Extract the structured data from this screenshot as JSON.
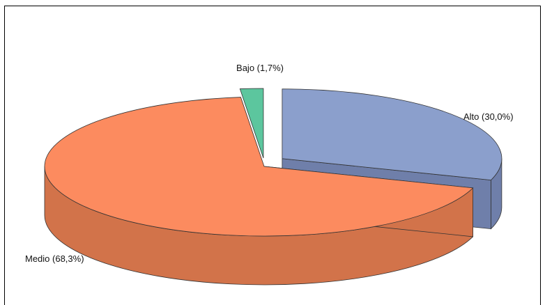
{
  "chart_data": {
    "type": "pie",
    "style": "3d-exploded",
    "slices": [
      {
        "label": "Alto (30,0%)",
        "category": "Alto",
        "value": 30.0,
        "color": "#8b9fcc",
        "side_color": "#6f7faa"
      },
      {
        "label": "Medio (68,3%)",
        "category": "Medio",
        "value": 68.3,
        "color": "#fc8b5f",
        "side_color": "#d2734a"
      },
      {
        "label": "Bajo (1,7%)",
        "category": "Bajo",
        "value": 1.7,
        "color": "#5cc69e",
        "side_color": "#3f9a78"
      }
    ],
    "legend": false,
    "border_color": "#000000"
  }
}
